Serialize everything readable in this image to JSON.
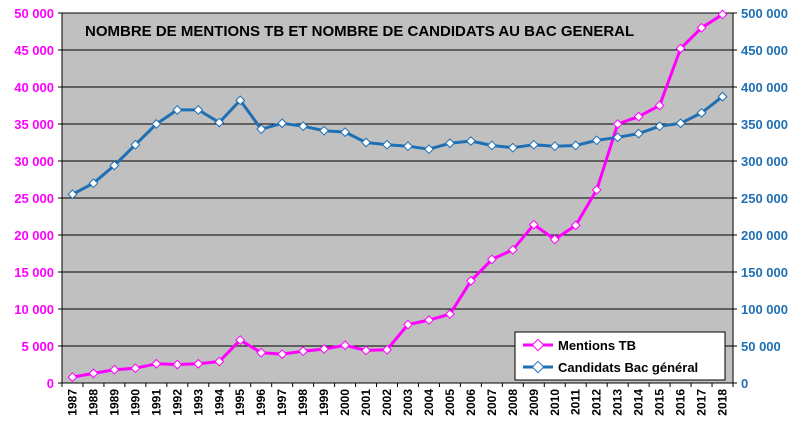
{
  "chart_data": {
    "type": "line",
    "title": "NOMBRE DE MENTIONS TB ET NOMBRE DE CANDIDATS AU BAC GENERAL",
    "categories": [
      "1987",
      "1988",
      "1989",
      "1990",
      "1991",
      "1992",
      "1993",
      "1994",
      "1995",
      "1996",
      "1997",
      "1998",
      "1999",
      "2000",
      "2001",
      "2002",
      "2003",
      "2004",
      "2005",
      "2006",
      "2007",
      "2008",
      "2009",
      "2010",
      "2011",
      "2012",
      "2013",
      "2014",
      "2015",
      "2016",
      "2017",
      "2018"
    ],
    "y_left": {
      "ylim": [
        0,
        50000
      ],
      "ticks": [
        0,
        5000,
        10000,
        15000,
        20000,
        25000,
        30000,
        35000,
        40000,
        45000,
        50000
      ],
      "tick_labels": [
        "0",
        "5 000",
        "10 000",
        "15 000",
        "20 000",
        "25 000",
        "30 000",
        "35 000",
        "40 000",
        "45 000",
        "50 000"
      ]
    },
    "y_right": {
      "ylim": [
        0,
        500000
      ],
      "ticks": [
        0,
        50000,
        100000,
        150000,
        200000,
        250000,
        300000,
        350000,
        400000,
        450000,
        500000
      ],
      "tick_labels": [
        "0",
        "50 000",
        "100 000",
        "150 000",
        "200 000",
        "250 000",
        "300 000",
        "350 000",
        "400 000",
        "450 000",
        "500 000"
      ]
    },
    "series": [
      {
        "name": "Mentions TB",
        "axis": "left",
        "color": "#ff00ff",
        "values": [
          800,
          1300,
          1800,
          2000,
          2600,
          2500,
          2600,
          2900,
          5800,
          4100,
          3900,
          4300,
          4600,
          5100,
          4400,
          4500,
          7900,
          8500,
          9300,
          13800,
          16700,
          18000,
          21400,
          19400,
          21300,
          26100,
          35000,
          36000,
          37500,
          45200,
          48000,
          49800
        ]
      },
      {
        "name": "Candidats Bac général",
        "axis": "right",
        "color": "#1f6fb4",
        "values": [
          255000,
          270000,
          294000,
          322000,
          350000,
          369000,
          369000,
          352000,
          382000,
          343000,
          351000,
          347000,
          341000,
          339000,
          325000,
          322000,
          320000,
          316000,
          324000,
          327000,
          321000,
          318000,
          322000,
          320000,
          321000,
          328000,
          332000,
          337000,
          347000,
          351000,
          365000,
          387000
        ]
      }
    ],
    "grid": true,
    "legend_position": "bottom-right",
    "plot_background": "#c0c0c0"
  }
}
